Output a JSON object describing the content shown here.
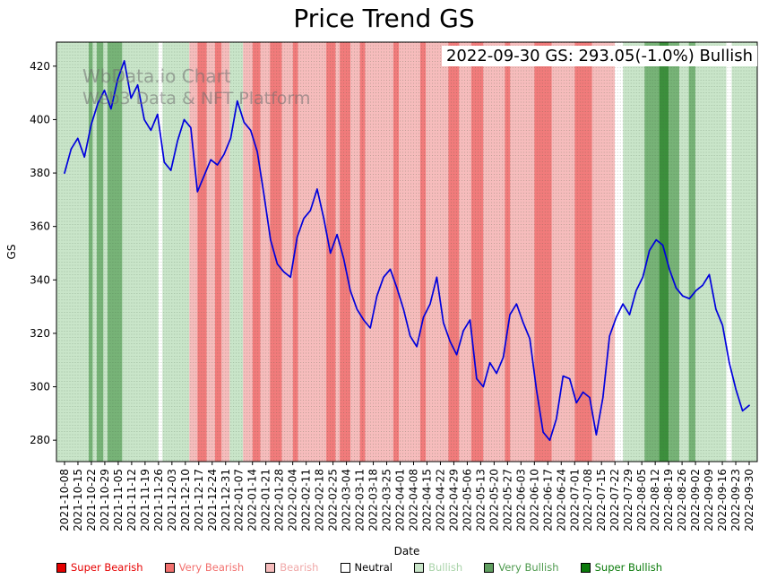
{
  "title": "Price Trend GS",
  "annotation": {
    "text": "2022-09-30 GS: 293.05(-1.0%) Bullish"
  },
  "watermark": {
    "line1": "WbData.io Chart",
    "line2": "Web3 Data & NFT Platform"
  },
  "legend": {
    "items": [
      {
        "label": "Super Bearish",
        "color": "#e60000",
        "text_color": "#e60000"
      },
      {
        "label": "Very Bearish",
        "color": "#f2706e",
        "text_color": "#f2706e"
      },
      {
        "label": "Bearish",
        "color": "#f6bcbc",
        "text_color": "#f0a8a8"
      },
      {
        "label": "Neutral",
        "color": "#ffffff",
        "text_color": "#000000"
      },
      {
        "label": "Bullish",
        "color": "#c9e5c9",
        "text_color": "#a9d3a9"
      },
      {
        "label": "Very Bullish",
        "color": "#5f9e5f",
        "text_color": "#4e9a4e"
      },
      {
        "label": "Super Bullish",
        "color": "#0b7a0b",
        "text_color": "#0a7a0a"
      }
    ]
  },
  "chart_data": {
    "type": "line",
    "title": "Price Trend GS",
    "xlabel": "Date",
    "ylabel": "GS",
    "ylim": [
      272,
      429
    ],
    "yticks": [
      280,
      300,
      320,
      340,
      360,
      380,
      400,
      420
    ],
    "x_tick_labels": [
      "2021-10-08",
      "2021-10-15",
      "2021-10-22",
      "2021-10-29",
      "2021-11-05",
      "2021-11-12",
      "2021-11-19",
      "2021-11-26",
      "2021-12-03",
      "2021-12-10",
      "2021-12-17",
      "2021-12-24",
      "2021-12-31",
      "2022-01-07",
      "2022-01-14",
      "2022-01-21",
      "2022-01-28",
      "2022-02-04",
      "2022-02-11",
      "2022-02-18",
      "2022-02-25",
      "2022-03-04",
      "2022-03-11",
      "2022-03-18",
      "2022-03-25",
      "2022-04-01",
      "2022-04-08",
      "2022-04-15",
      "2022-04-22",
      "2022-04-29",
      "2022-05-06",
      "2022-05-13",
      "2022-05-20",
      "2022-05-27",
      "2022-06-03",
      "2022-06-10",
      "2022-06-17",
      "2022-06-24",
      "2022-07-01",
      "2022-07-08",
      "2022-07-15",
      "2022-07-22",
      "2022-07-29",
      "2022-08-05",
      "2022-08-12",
      "2022-08-19",
      "2022-08-26",
      "2022-09-02",
      "2022-09-09",
      "2022-09-16",
      "2022-09-23",
      "2022-09-30"
    ],
    "series": [
      {
        "name": "GS",
        "color": "#0000dd",
        "values": [
          380,
          389,
          393,
          386,
          398,
          406,
          411,
          404,
          415,
          422,
          408,
          413,
          400,
          396,
          402,
          384,
          381,
          392,
          400,
          397,
          373,
          379,
          385,
          383,
          387,
          393,
          407,
          399,
          396,
          388,
          372,
          355,
          346,
          343,
          341,
          356,
          363,
          366,
          374,
          363,
          350,
          357,
          348,
          336,
          329,
          325,
          322,
          334,
          341,
          344,
          337,
          329,
          319,
          315,
          326,
          331,
          341,
          324,
          317,
          312,
          321,
          325,
          303,
          300,
          309,
          305,
          311,
          327,
          331,
          324,
          318,
          299,
          283,
          280,
          288,
          304,
          303,
          294,
          298,
          296,
          282,
          296,
          319,
          326,
          331,
          327,
          336,
          341,
          351,
          355,
          353,
          344,
          337,
          334,
          333,
          336,
          338,
          342,
          329,
          323,
          309,
          299,
          291,
          293.05
        ]
      }
    ],
    "latest": {
      "date": "2022-09-30",
      "value": 293.05,
      "change_pct": -1.0,
      "signal": "Bullish"
    },
    "background_bands": {
      "colors": {
        "super_bearish": "#e60000",
        "very_bearish": "#f17b7b",
        "bearish": "#f6bcbc",
        "neutral": "#ffffff",
        "bullish": "#c9e5c9",
        "very_bullish": "#77b377",
        "super_bullish": "#3c8f3c"
      },
      "segments": [
        [
          -0.6,
          1.8,
          "bullish"
        ],
        [
          1.8,
          2.1,
          "very_bullish"
        ],
        [
          2.1,
          2.4,
          "bullish"
        ],
        [
          2.4,
          2.9,
          "very_bullish"
        ],
        [
          2.9,
          3.2,
          "bullish"
        ],
        [
          3.2,
          4.3,
          "very_bullish"
        ],
        [
          4.3,
          7.0,
          "bullish"
        ],
        [
          7.0,
          7.3,
          "neutral"
        ],
        [
          7.3,
          9.3,
          "bullish"
        ],
        [
          9.3,
          9.9,
          "bearish"
        ],
        [
          9.9,
          10.6,
          "very_bearish"
        ],
        [
          10.6,
          11.2,
          "bearish"
        ],
        [
          11.2,
          11.7,
          "very_bearish"
        ],
        [
          11.7,
          12.3,
          "bearish"
        ],
        [
          12.3,
          13.3,
          "bullish"
        ],
        [
          13.3,
          14.0,
          "bearish"
        ],
        [
          14.0,
          14.6,
          "very_bearish"
        ],
        [
          14.6,
          15.3,
          "bearish"
        ],
        [
          15.3,
          16.2,
          "very_bearish"
        ],
        [
          16.2,
          17.0,
          "bearish"
        ],
        [
          17.0,
          17.4,
          "very_bearish"
        ],
        [
          17.4,
          19.5,
          "bearish"
        ],
        [
          19.5,
          20.2,
          "very_bearish"
        ],
        [
          20.2,
          20.5,
          "bearish"
        ],
        [
          20.5,
          21.3,
          "very_bearish"
        ],
        [
          21.3,
          22.0,
          "bearish"
        ],
        [
          22.0,
          22.4,
          "very_bearish"
        ],
        [
          22.4,
          24.5,
          "bearish"
        ],
        [
          24.5,
          24.9,
          "very_bearish"
        ],
        [
          24.9,
          26.5,
          "bearish"
        ],
        [
          26.5,
          26.9,
          "very_bearish"
        ],
        [
          26.9,
          28.6,
          "bearish"
        ],
        [
          28.6,
          29.4,
          "very_bearish"
        ],
        [
          29.4,
          30.3,
          "bearish"
        ],
        [
          30.3,
          31.2,
          "very_bearish"
        ],
        [
          31.2,
          32.8,
          "bearish"
        ],
        [
          32.8,
          33.2,
          "very_bearish"
        ],
        [
          33.2,
          35.0,
          "bearish"
        ],
        [
          35.0,
          36.3,
          "very_bearish"
        ],
        [
          36.3,
          38.0,
          "bearish"
        ],
        [
          38.0,
          39.3,
          "very_bearish"
        ],
        [
          39.3,
          41.0,
          "bearish"
        ],
        [
          41.0,
          41.6,
          "neutral"
        ],
        [
          41.6,
          43.2,
          "bullish"
        ],
        [
          43.2,
          44.3,
          "very_bullish"
        ],
        [
          44.3,
          45.0,
          "super_bullish"
        ],
        [
          45.0,
          45.8,
          "very_bullish"
        ],
        [
          45.8,
          46.5,
          "bullish"
        ],
        [
          46.5,
          47.0,
          "very_bullish"
        ],
        [
          47.0,
          49.3,
          "bullish"
        ],
        [
          49.3,
          49.7,
          "neutral"
        ],
        [
          49.7,
          51.6,
          "bullish"
        ]
      ]
    }
  }
}
